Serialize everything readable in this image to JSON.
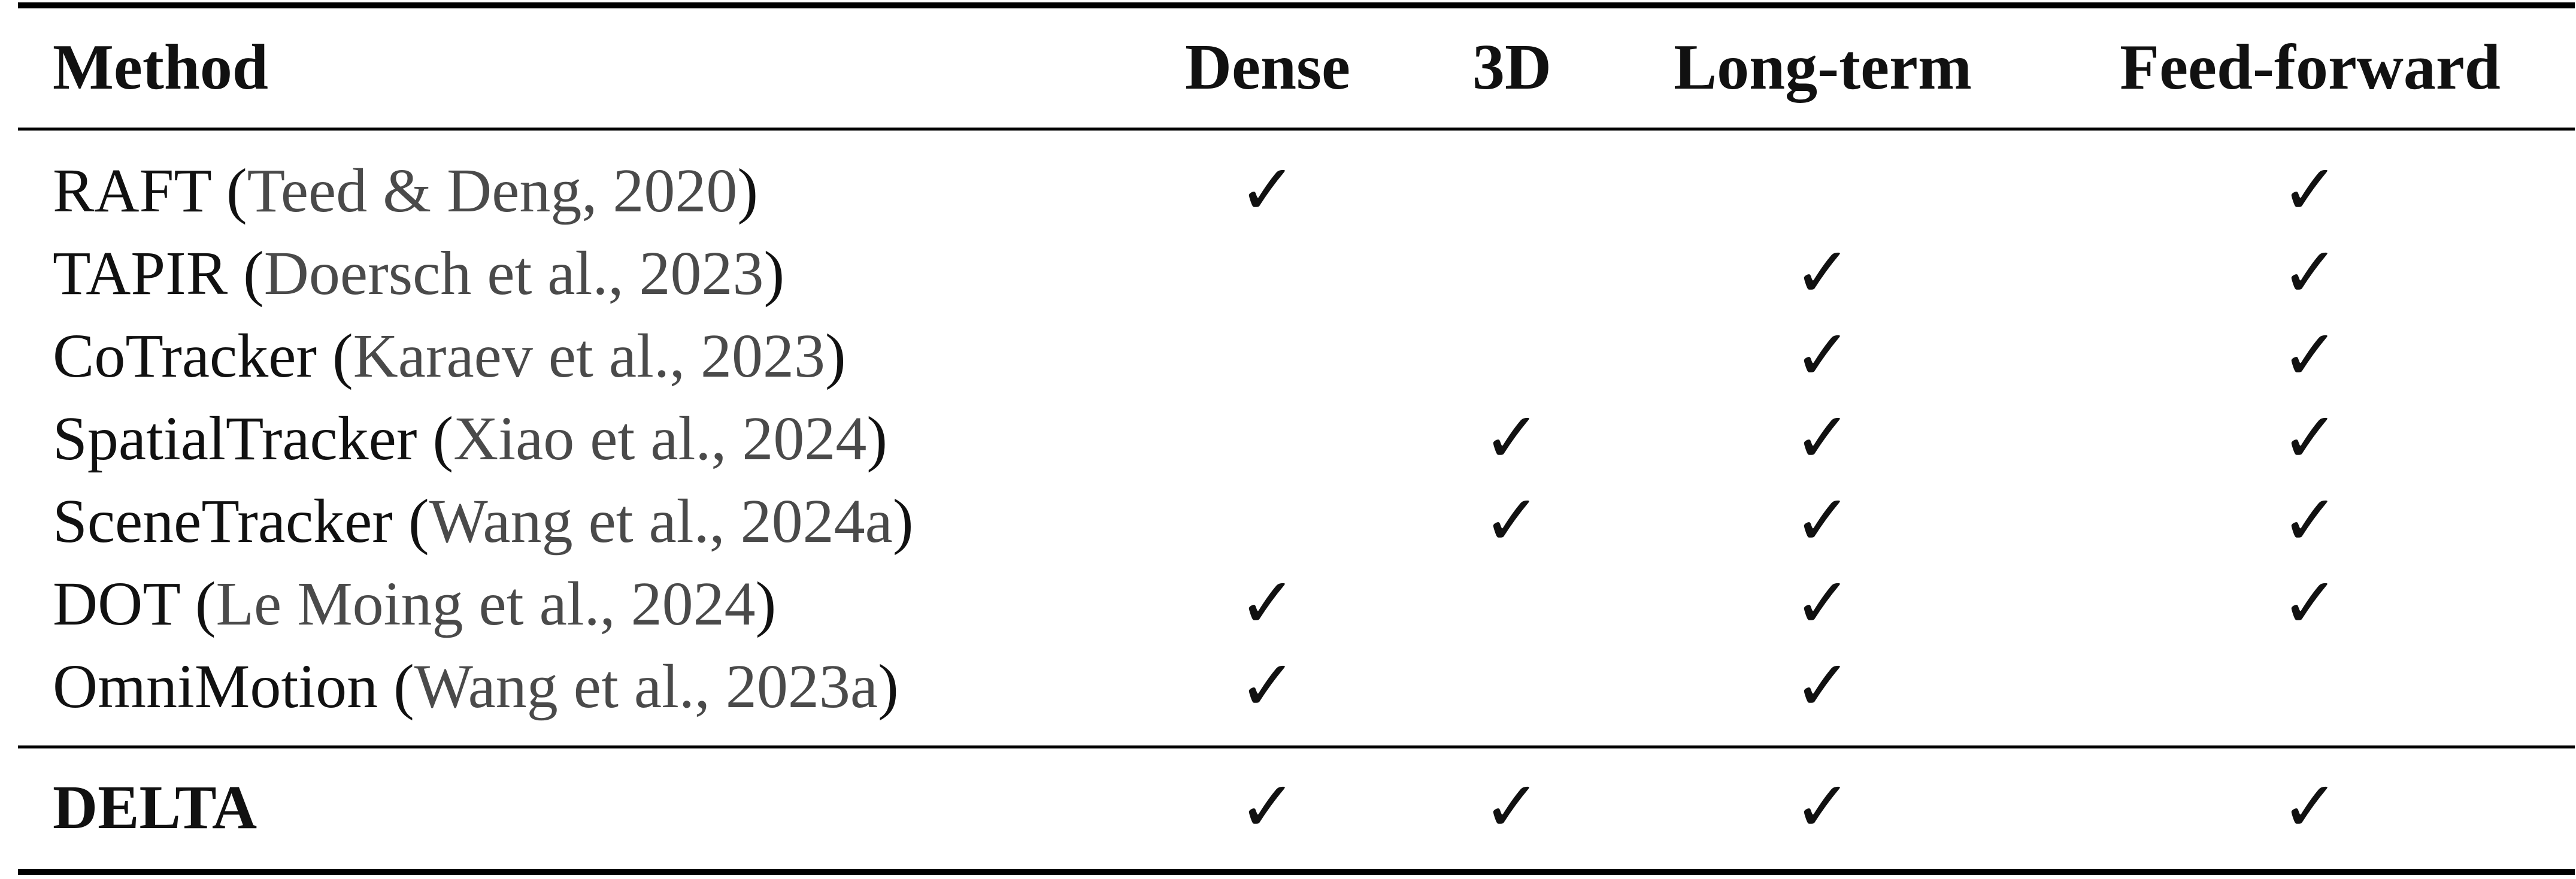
{
  "table": {
    "headers": [
      "Method",
      "Dense",
      "3D",
      "Long-term",
      "Feed-forward"
    ],
    "check_symbol": "✓",
    "rows": [
      {
        "method": "RAFT",
        "citation": "Teed & Deng, 2020",
        "dense": "✓",
        "three_d": "",
        "long_term": "",
        "feed_forward": "✓"
      },
      {
        "method": "TAPIR",
        "citation": "Doersch et al., 2023",
        "dense": "",
        "three_d": "",
        "long_term": "✓",
        "feed_forward": "✓"
      },
      {
        "method": "CoTracker",
        "citation": "Karaev et al., 2023",
        "dense": "",
        "three_d": "",
        "long_term": "✓",
        "feed_forward": "✓"
      },
      {
        "method": "SpatialTracker",
        "citation": "Xiao et al., 2024",
        "dense": "",
        "three_d": "✓",
        "long_term": "✓",
        "feed_forward": "✓"
      },
      {
        "method": "SceneTracker",
        "citation": "Wang et al., 2024a",
        "dense": "",
        "three_d": "✓",
        "long_term": "✓",
        "feed_forward": "✓"
      },
      {
        "method": "DOT",
        "citation": "Le Moing et al., 2024",
        "dense": "✓",
        "three_d": "",
        "long_term": "✓",
        "feed_forward": "✓"
      },
      {
        "method": "OmniMotion",
        "citation": "Wang et al., 2023a",
        "dense": "✓",
        "three_d": "",
        "long_term": "✓",
        "feed_forward": ""
      }
    ],
    "final_row": {
      "method": "DELTA",
      "dense": "✓",
      "three_d": "✓",
      "long_term": "✓",
      "feed_forward": "✓"
    }
  }
}
